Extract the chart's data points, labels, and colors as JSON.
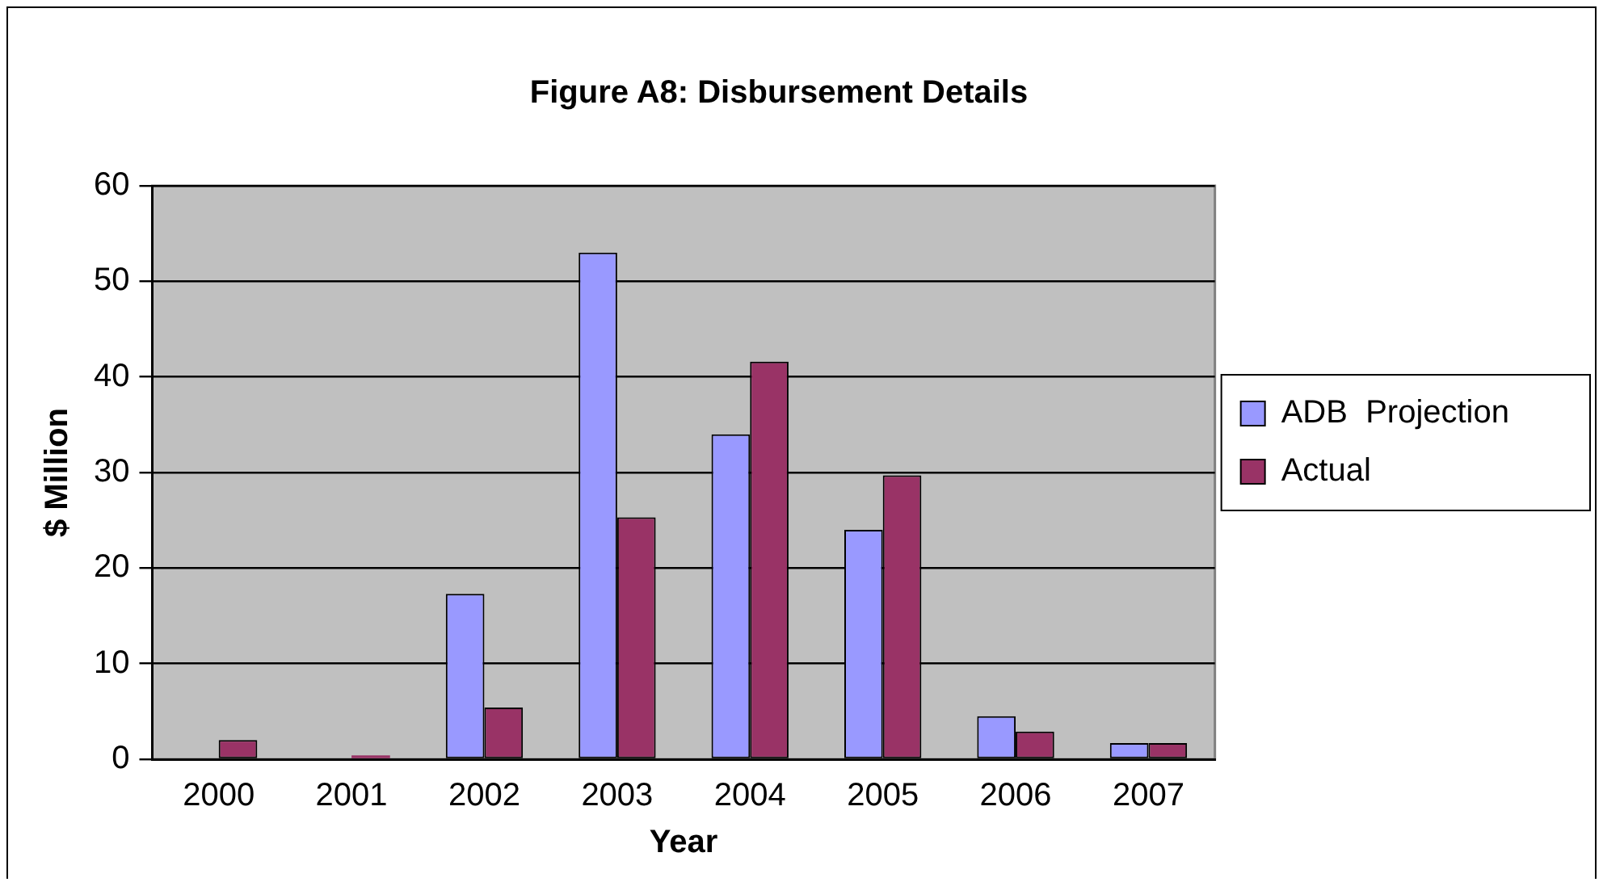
{
  "chart_data": {
    "type": "bar",
    "title": "Figure A8: Disbursement Details",
    "xlabel": "Year",
    "ylabel": "$ Million",
    "categories": [
      "2000",
      "2001",
      "2002",
      "2003",
      "2004",
      "2005",
      "2006",
      "2007"
    ],
    "series": [
      {
        "name": "ADB  Projection",
        "color": "#9999ff",
        "values": [
          null,
          null,
          17.3,
          53.0,
          34.0,
          24.0,
          4.5,
          1.7
        ]
      },
      {
        "name": "Actual",
        "color": "#993366",
        "values": [
          2.0,
          0.4,
          5.4,
          25.3,
          41.6,
          29.7,
          2.9,
          1.7
        ]
      }
    ],
    "ylim": [
      0,
      60
    ],
    "yticks": [
      0,
      10,
      20,
      30,
      40,
      50,
      60
    ],
    "grid": "y",
    "legend": "right"
  }
}
